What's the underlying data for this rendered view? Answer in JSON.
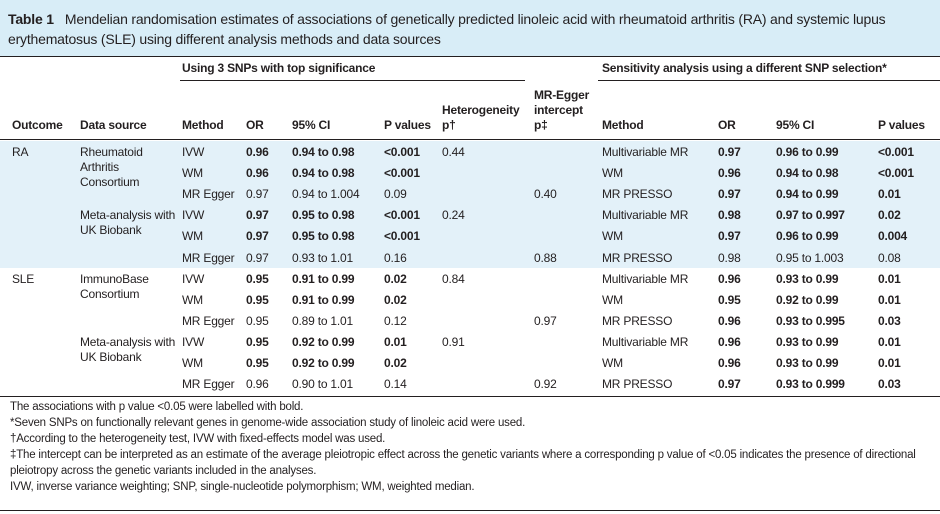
{
  "header": {
    "label": "Table 1",
    "title": "Mendelian randomisation estimates of associations of genetically predicted linoleic acid with rheumatoid arthritis (RA) and systemic lupus erythematosus (SLE) using different analysis methods and data sources"
  },
  "table": {
    "groups": [
      "Using 3 SNPs with top significance",
      "Sensitivity analysis using a different SNP selection*"
    ],
    "columns": [
      "Outcome",
      "Data source",
      "Method",
      "OR",
      "95% CI",
      "P values",
      "Heterogeneity p†",
      "MR-Egger intercept p‡",
      "Method",
      "OR",
      "95% CI",
      "P values"
    ],
    "rows": [
      {
        "cells": [
          "RA",
          "Rheumatoid Arthritis Consortium",
          "IVW",
          "0.96",
          "0.94 to 0.98",
          "<0.001",
          "0.44",
          null,
          "Multivariable MR",
          "0.97",
          "0.96 to 0.99",
          "<0.001"
        ],
        "bold": [
          3,
          4,
          5,
          9,
          10,
          11
        ]
      },
      {
        "cells": [
          null,
          null,
          "WM",
          "0.96",
          "0.94 to 0.98",
          "<0.001",
          null,
          null,
          "WM",
          "0.96",
          "0.94 to 0.98",
          "<0.001"
        ],
        "bold": [
          3,
          4,
          5,
          9,
          10,
          11
        ]
      },
      {
        "cells": [
          null,
          null,
          "MR Egger",
          "0.97",
          "0.94 to 1.004",
          "0.09",
          null,
          "0.40",
          "MR PRESSO",
          "0.97",
          "0.94 to 0.99",
          "0.01"
        ],
        "bold": [
          9,
          10,
          11
        ]
      },
      {
        "cells": [
          null,
          "Meta-analysis with UK Biobank",
          "IVW",
          "0.97",
          "0.95 to 0.98",
          "<0.001",
          "0.24",
          null,
          "Multivariable MR",
          "0.98",
          "0.97 to 0.997",
          "0.02"
        ],
        "bold": [
          3,
          4,
          5,
          9,
          10,
          11
        ]
      },
      {
        "cells": [
          null,
          null,
          "WM",
          "0.97",
          "0.95 to 0.98",
          "<0.001",
          null,
          null,
          "WM",
          "0.97",
          "0.96 to 0.99",
          "0.004"
        ],
        "bold": [
          3,
          4,
          5,
          9,
          10,
          11
        ]
      },
      {
        "cells": [
          null,
          null,
          "MR Egger",
          "0.97",
          "0.93 to 1.01",
          "0.16",
          null,
          "0.88",
          "MR PRESSO",
          "0.98",
          "0.95 to 1.003",
          "0.08"
        ],
        "bold": []
      },
      {
        "cells": [
          "SLE",
          "ImmunoBase Consortium",
          "IVW",
          "0.95",
          "0.91 to 0.99",
          "0.02",
          "0.84",
          null,
          "Multivariable MR",
          "0.96",
          "0.93 to 0.99",
          "0.01"
        ],
        "bold": [
          3,
          4,
          5,
          9,
          10,
          11
        ]
      },
      {
        "cells": [
          null,
          null,
          "WM",
          "0.95",
          "0.91 to 0.99",
          "0.02",
          null,
          null,
          "WM",
          "0.95",
          "0.92 to 0.99",
          "0.01"
        ],
        "bold": [
          3,
          4,
          5,
          9,
          10,
          11
        ]
      },
      {
        "cells": [
          null,
          null,
          "MR Egger",
          "0.95",
          "0.89 to 1.01",
          "0.12",
          null,
          "0.97",
          "MR PRESSO",
          "0.96",
          "0.93 to 0.995",
          "0.03"
        ],
        "bold": [
          9,
          10,
          11
        ]
      },
      {
        "cells": [
          null,
          "Meta-analysis with UK Biobank",
          "IVW",
          "0.95",
          "0.92 to 0.99",
          "0.01",
          "0.91",
          null,
          "Multivariable MR",
          "0.96",
          "0.93 to 0.99",
          "0.01"
        ],
        "bold": [
          3,
          4,
          5,
          9,
          10,
          11
        ]
      },
      {
        "cells": [
          null,
          null,
          "WM",
          "0.95",
          "0.92 to 0.99",
          "0.02",
          null,
          null,
          "WM",
          "0.96",
          "0.93 to 0.99",
          "0.01"
        ],
        "bold": [
          3,
          4,
          5,
          9,
          10,
          11
        ]
      },
      {
        "cells": [
          null,
          null,
          "MR Egger",
          "0.96",
          "0.90 to 1.01",
          "0.14",
          null,
          "0.92",
          "MR PRESSO",
          "0.97",
          "0.93 to 0.999",
          "0.03"
        ],
        "bold": [
          9,
          10,
          11
        ]
      }
    ]
  },
  "footnotes": [
    "The associations with p value <0.05 were labelled with bold.",
    "*Seven SNPs on functionally relevant genes in genome-wide association study of linoleic acid were used.",
    "†According to the heterogeneity test, IVW with fixed-effects model was used.",
    "‡The intercept can be interpreted as an estimate of the average pleiotropic effect across the genetic variants where a corresponding p value of <0.05 indicates the presence of directional pleiotropy across the genetic variants included in the analyses.",
    "IVW, inverse variance weighting; SNP, single-nucleotide polymorphism; WM, weighted median."
  ]
}
